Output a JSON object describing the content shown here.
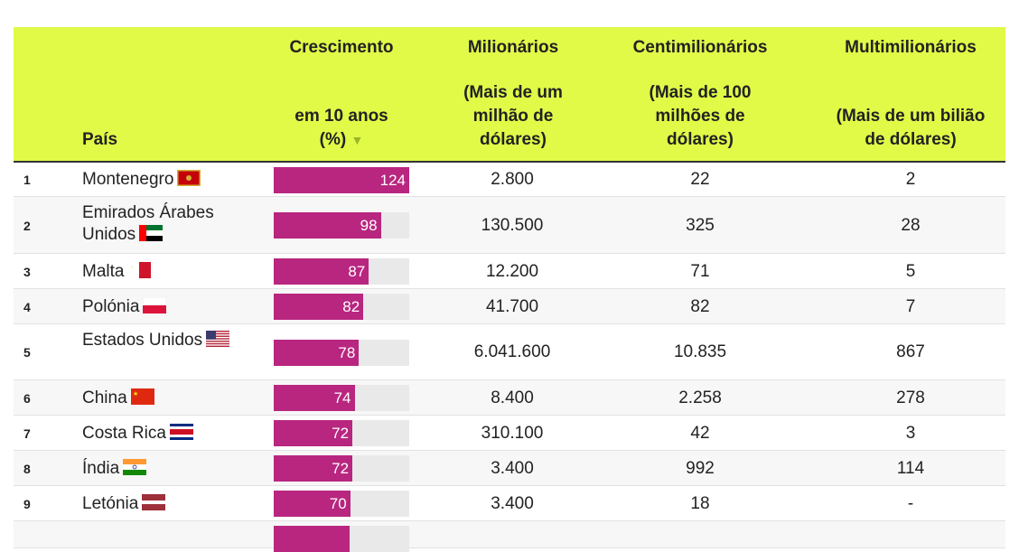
{
  "header": {
    "country": "País",
    "growth": [
      "Crescimento",
      "em 10 anos",
      "(%)"
    ],
    "sort_icon": "triangle-down-icon",
    "millionaires": [
      "Milionários",
      "(Mais de um",
      "milhão de",
      "dólares)"
    ],
    "centimillionaires": [
      "Centimilionários",
      "(Mais de 100",
      "milhões de",
      "dólares)"
    ],
    "multimillionaires": [
      "Multimilionários",
      "(Mais de um bilião",
      "de dólares)"
    ]
  },
  "colors": {
    "header_bg": "#e1fa48",
    "bar": "#b8267f",
    "bar_track": "#e9e9e9"
  },
  "chart_data": {
    "type": "table",
    "columns": [
      "País",
      "Crescimento em 10 anos (%)",
      "Milionários",
      "Centimilionários",
      "Multimilionários"
    ],
    "bar_max": 124,
    "rows": [
      {
        "rank": "1",
        "country": "Montenegro",
        "flag": "montenegro",
        "growth": 124,
        "millionaires": "2.800",
        "centi": "22",
        "multi": "2"
      },
      {
        "rank": "2",
        "country": "Emirados Árabes Unidos",
        "flag": "uae",
        "growth": 98,
        "millionaires": "130.500",
        "centi": "325",
        "multi": "28"
      },
      {
        "rank": "3",
        "country": "Malta",
        "flag": "malta",
        "growth": 87,
        "millionaires": "12.200",
        "centi": "71",
        "multi": "5"
      },
      {
        "rank": "4",
        "country": "Polónia",
        "flag": "poland",
        "growth": 82,
        "millionaires": "41.700",
        "centi": "82",
        "multi": "7"
      },
      {
        "rank": "5",
        "country": "Estados Unidos",
        "flag": "usa",
        "growth": 78,
        "millionaires": "6.041.600",
        "centi": "10.835",
        "multi": "867"
      },
      {
        "rank": "6",
        "country": "China",
        "flag": "china",
        "growth": 74,
        "millionaires": "8.400",
        "centi": "2.258",
        "multi": "278"
      },
      {
        "rank": "7",
        "country": "Costa Rica",
        "flag": "costa-rica",
        "growth": 72,
        "millionaires": "310.100",
        "centi": "42",
        "multi": "3"
      },
      {
        "rank": "8",
        "country": "Índia",
        "flag": "india",
        "growth": 72,
        "millionaires": "3.400",
        "centi": "992",
        "multi": "114"
      },
      {
        "rank": "9",
        "country": "Letónia",
        "flag": "latvia",
        "growth": 70,
        "millionaires": "3.400",
        "centi": "18",
        "multi": "-"
      }
    ]
  }
}
